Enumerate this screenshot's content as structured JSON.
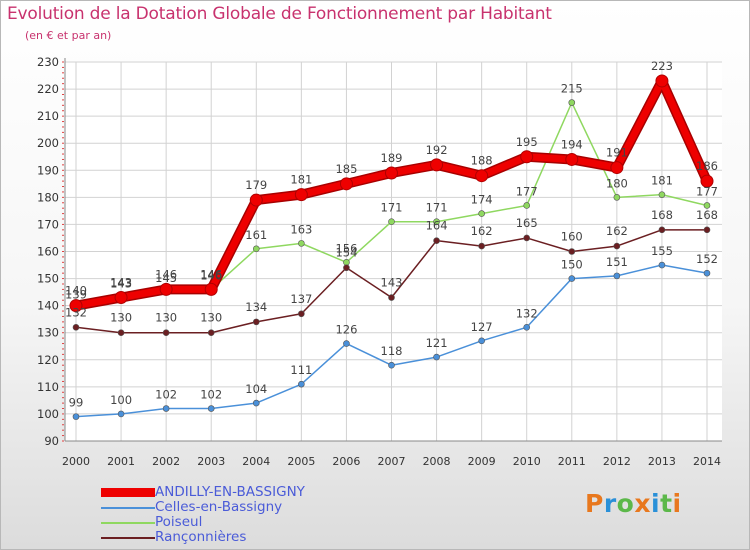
{
  "title": "Evolution de la Dotation Globale de Fonctionnement par Habitant",
  "subtitle": "(en € et par an)",
  "brand": {
    "text": "Proxiti",
    "letter_colors": [
      "#e8781e",
      "#2a90d8",
      "#5cb84a",
      "#e8781e",
      "#2a90d8",
      "#5cb84a",
      "#e8781e"
    ]
  },
  "chart_data": {
    "type": "line",
    "x": [
      "2000",
      "2001",
      "2002",
      "2003",
      "2004",
      "2005",
      "2006",
      "2007",
      "2008",
      "2009",
      "2010",
      "2011",
      "2012",
      "2013",
      "2014"
    ],
    "ylim": [
      90,
      230
    ],
    "yticks": [
      90,
      100,
      110,
      120,
      130,
      140,
      150,
      160,
      170,
      180,
      190,
      200,
      210,
      220,
      230
    ],
    "grid": true,
    "legend_position": "bottom-left",
    "series": [
      {
        "name": "Celles-en-Bassigny",
        "color": "#4a90d9",
        "values": [
          99,
          100,
          102,
          102,
          104,
          111,
          126,
          118,
          121,
          127,
          132,
          150,
          151,
          155,
          152
        ]
      },
      {
        "name": "Poiseul",
        "color": "#8fd860",
        "values": [
          139,
          143,
          145,
          146,
          161,
          163,
          156,
          171,
          171,
          174,
          177,
          215,
          180,
          181,
          177
        ]
      },
      {
        "name": "Rançonnières",
        "color": "#6b1f22",
        "values": [
          132,
          130,
          130,
          130,
          134,
          137,
          154,
          143,
          164,
          162,
          165,
          160,
          162,
          168,
          168
        ]
      },
      {
        "name": "ANDILLY-EN-BASSIGNY",
        "color": "#ee0000",
        "values": [
          140,
          143,
          146,
          146,
          179,
          181,
          185,
          189,
          192,
          188,
          195,
          194,
          191,
          223,
          186
        ]
      }
    ]
  }
}
